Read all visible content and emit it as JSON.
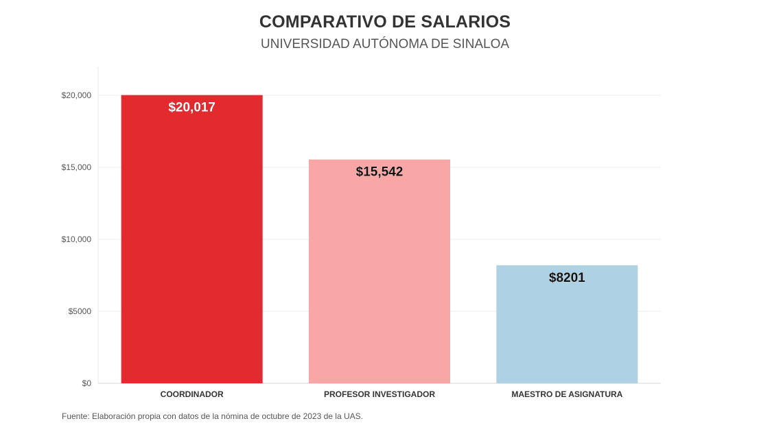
{
  "header": {
    "title": "COMPARATIVO DE SALARIOS",
    "subtitle": "UNIVERSIDAD AUTÓNOMA DE SINALOA"
  },
  "footnote": "Fuente: Elaboración propia con datos de la nómina de octubre de 2023 de la UAS.",
  "chart_data": {
    "type": "bar",
    "title": "COMPARATIVO DE SALARIOS",
    "subtitle": "UNIVERSIDAD AUTÓNOMA DE SINALOA",
    "categories": [
      "COORDINADOR",
      "PROFESOR INVESTIGADOR",
      "MAESTRO DE ASIGNATURA"
    ],
    "values": [
      20017,
      15542,
      8201
    ],
    "value_labels": [
      "$20,017",
      "$15,542",
      "$8201"
    ],
    "bar_colors": [
      "#e32b2f",
      "#f9a6a6",
      "#aed1e3"
    ],
    "label_colors": [
      "#ffffff",
      "#111111",
      "#111111"
    ],
    "ylim": [
      0,
      22000
    ],
    "yticks": [
      0,
      5000,
      10000,
      15000,
      20000
    ],
    "ytick_labels": [
      "$0",
      "$5000",
      "$10,000",
      "$15,000",
      "$20,000"
    ],
    "xlabel": "",
    "ylabel": "",
    "grid": true,
    "legend": "none"
  }
}
